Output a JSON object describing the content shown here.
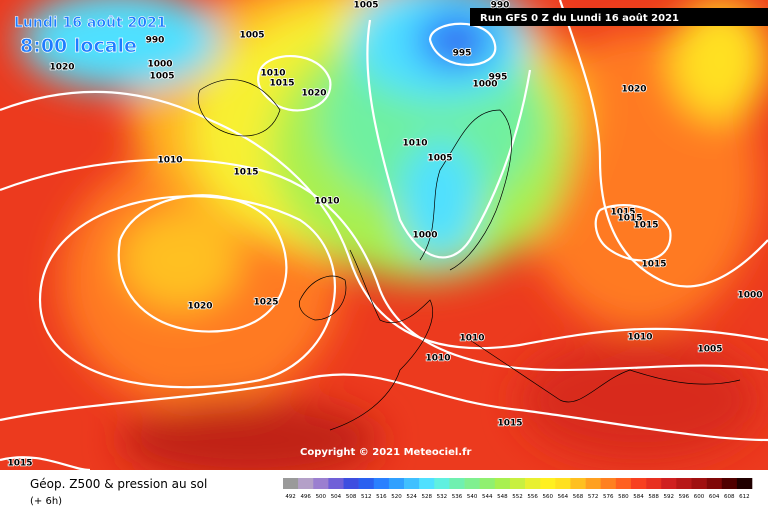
{
  "header": {
    "date": "Lundi 16 août 2021",
    "time": "8:00 locale",
    "run": "Run GFS 0 Z du Lundi 16 août 2021"
  },
  "map": {
    "copyright": "Copyright © 2021 Meteociel.fr",
    "pressure_labels": [
      1005,
      990,
      995,
      990,
      1020,
      1000,
      1005,
      1005,
      1010,
      1015,
      1020,
      1000,
      995,
      1020,
      1010,
      1015,
      1010,
      1005,
      1010,
      1015,
      1015,
      1015,
      1000,
      1015,
      1020,
      1025,
      1000,
      1010,
      1010,
      1005,
      1010,
      1015,
      1015
    ]
  },
  "legend": {
    "title": "Géop. Z500 & pression au sol",
    "subtitle": "(+ 6h)",
    "scale": [
      492,
      496,
      500,
      504,
      508,
      512,
      516,
      520,
      524,
      528,
      532,
      536,
      540,
      544,
      548,
      552,
      556,
      560,
      564,
      568,
      572,
      576,
      580,
      584,
      588,
      592,
      596,
      600,
      604,
      608,
      612
    ],
    "colors": [
      "#9a9a9a",
      "#b4a0c8",
      "#9b7fd0",
      "#7060d8",
      "#3e4ee0",
      "#2a60f0",
      "#2a80ff",
      "#30a0ff",
      "#40c0ff",
      "#50e0ff",
      "#60f0e0",
      "#70f0b0",
      "#80f090",
      "#90f070",
      "#a8f050",
      "#c8f040",
      "#e8f030",
      "#fff020",
      "#ffe020",
      "#ffc020",
      "#ffa020",
      "#ff8020",
      "#ff6020",
      "#f84020",
      "#e83020",
      "#d02020",
      "#b81818",
      "#a01010",
      "#800808",
      "#500000",
      "#200000"
    ]
  }
}
